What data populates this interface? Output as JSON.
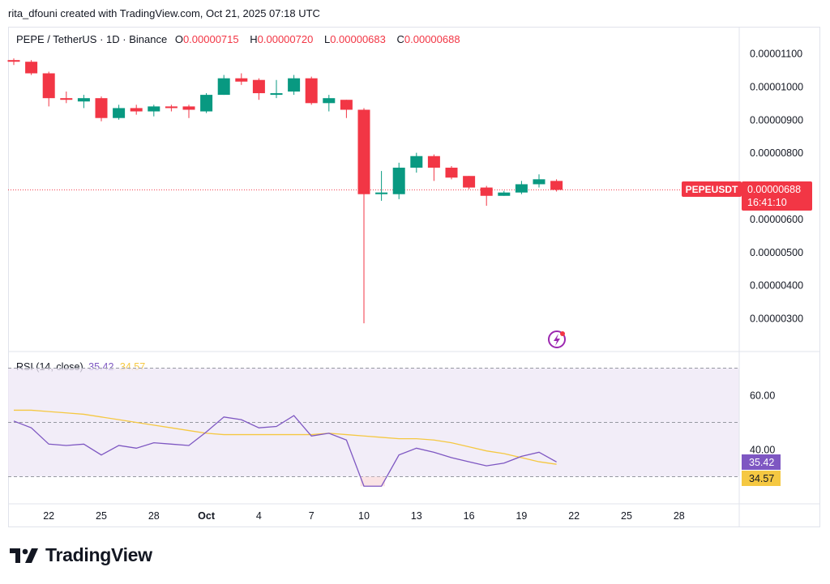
{
  "header": {
    "text": "rita_dfouni created with TradingView.com, Oct 21, 2025 07:18 UTC"
  },
  "legend": {
    "symbol": "PEPE / TetherUS · 1D · Binance",
    "o_label": "O",
    "o_value": "0.00000715",
    "h_label": "H",
    "h_value": "0.00000720",
    "l_label": "L",
    "l_value": "0.00000683",
    "c_label": "C",
    "c_value": "0.00000688"
  },
  "price_tag": {
    "symbol": "PEPEUSDT",
    "price": "0.00000688",
    "countdown": "16:41:10"
  },
  "rsi_legend": {
    "title": "RSI (14, close)",
    "rsi_value": "35.42",
    "ma_value": "34.57"
  },
  "rsi_tags": {
    "rsi": "35.42",
    "ma": "34.57"
  },
  "colors": {
    "up": "#089981",
    "down": "#f23645",
    "rsi": "#7e57c2",
    "rsi_ma": "#f5c842",
    "band": "#ede7f6"
  },
  "footer": {
    "brand": "TradingView"
  },
  "chart_data": [
    {
      "type": "candlestick",
      "title": "PEPE / TetherUS · 1D · Binance",
      "ylim": [
        2.6e-06,
        1.15e-05
      ],
      "y_ticks": [
        "0.00001100",
        "0.00001000",
        "0.00000900",
        "0.00000800",
        "0.00000600",
        "0.00000500",
        "0.00000400",
        "0.00000300"
      ],
      "x_ticks": [
        "22",
        "25",
        "28",
        "Oct",
        "4",
        "7",
        "10",
        "13",
        "16",
        "19",
        "22",
        "25",
        "28"
      ],
      "candles": [
        {
          "o": 1.08e-05,
          "h": 1.085e-05,
          "l": 1.065e-05,
          "c": 1.075e-05
        },
        {
          "o": 1.075e-05,
          "h": 1.08e-05,
          "l": 1.035e-05,
          "c": 1.04e-05
        },
        {
          "o": 1.04e-05,
          "h": 1.045e-05,
          "l": 9.4e-06,
          "c": 9.65e-06
        },
        {
          "o": 9.65e-06,
          "h": 9.85e-06,
          "l": 9.5e-06,
          "c": 9.6e-06
        },
        {
          "o": 9.55e-06,
          "h": 9.75e-06,
          "l": 9.35e-06,
          "c": 9.65e-06
        },
        {
          "o": 9.65e-06,
          "h": 9.7e-06,
          "l": 8.95e-06,
          "c": 9.05e-06
        },
        {
          "o": 9.05e-06,
          "h": 9.45e-06,
          "l": 9e-06,
          "c": 9.35e-06
        },
        {
          "o": 9.35e-06,
          "h": 9.45e-06,
          "l": 9.15e-06,
          "c": 9.25e-06
        },
        {
          "o": 9.25e-06,
          "h": 9.45e-06,
          "l": 9.1e-06,
          "c": 9.4e-06
        },
        {
          "o": 9.4e-06,
          "h": 9.45e-06,
          "l": 9.25e-06,
          "c": 9.35e-06
        },
        {
          "o": 9.4e-06,
          "h": 9.45e-06,
          "l": 9.05e-06,
          "c": 9.3e-06
        },
        {
          "o": 9.25e-06,
          "h": 9.8e-06,
          "l": 9.2e-06,
          "c": 9.75e-06
        },
        {
          "o": 9.75e-06,
          "h": 1.035e-05,
          "l": 9.75e-06,
          "c": 1.025e-05
        },
        {
          "o": 1.025e-05,
          "h": 1.04e-05,
          "l": 1.005e-05,
          "c": 1.015e-05
        },
        {
          "o": 1.02e-05,
          "h": 1.025e-05,
          "l": 9.6e-06,
          "c": 9.8e-06
        },
        {
          "o": 9.75e-06,
          "h": 1.02e-05,
          "l": 9.65e-06,
          "c": 9.8e-06
        },
        {
          "o": 9.85e-06,
          "h": 1.035e-05,
          "l": 9.75e-06,
          "c": 1.025e-05
        },
        {
          "o": 1.025e-05,
          "h": 1.03e-05,
          "l": 9.45e-06,
          "c": 9.5e-06
        },
        {
          "o": 9.5e-06,
          "h": 9.75e-06,
          "l": 9.25e-06,
          "c": 9.65e-06
        },
        {
          "o": 9.6e-06,
          "h": 9.6e-06,
          "l": 9.05e-06,
          "c": 9.3e-06
        },
        {
          "o": 9.3e-06,
          "h": 9.35e-06,
          "l": 2.85e-06,
          "c": 6.75e-06
        },
        {
          "o": 6.75e-06,
          "h": 7.45e-06,
          "l": 6.55e-06,
          "c": 6.8e-06
        },
        {
          "o": 6.75e-06,
          "h": 7.7e-06,
          "l": 6.6e-06,
          "c": 7.55e-06
        },
        {
          "o": 7.55e-06,
          "h": 8e-06,
          "l": 7.4e-06,
          "c": 7.9e-06
        },
        {
          "o": 7.9e-06,
          "h": 7.95e-06,
          "l": 7.15e-06,
          "c": 7.55e-06
        },
        {
          "o": 7.55e-06,
          "h": 7.6e-06,
          "l": 7.2e-06,
          "c": 7.25e-06
        },
        {
          "o": 7.3e-06,
          "h": 7.3e-06,
          "l": 6.9e-06,
          "c": 6.95e-06
        },
        {
          "o": 6.95e-06,
          "h": 7e-06,
          "l": 6.4e-06,
          "c": 6.7e-06
        },
        {
          "o": 6.7e-06,
          "h": 6.85e-06,
          "l": 6.7e-06,
          "c": 6.8e-06
        },
        {
          "o": 6.8e-06,
          "h": 7.15e-06,
          "l": 6.75e-06,
          "c": 7.05e-06
        },
        {
          "o": 7.05e-06,
          "h": 7.35e-06,
          "l": 6.95e-06,
          "c": 7.2e-06
        },
        {
          "o": 7.15e-06,
          "h": 7.2e-06,
          "l": 6.83e-06,
          "c": 6.88e-06
        }
      ],
      "last_price": 6.88e-06
    },
    {
      "type": "line",
      "title": "RSI (14, close)",
      "ylim": [
        22,
        74
      ],
      "y_ticks": [
        "60.00",
        "40.00"
      ],
      "bands": [
        70,
        50,
        30
      ],
      "series": [
        {
          "name": "RSI",
          "values": [
            50.5,
            48,
            42,
            41.5,
            42,
            38,
            41.5,
            40.5,
            42.5,
            42,
            41.5,
            46.5,
            52,
            51,
            48,
            48.5,
            52.5,
            45,
            46,
            43.5,
            26.5,
            26.5,
            38,
            40.5,
            39,
            37,
            35.5,
            34,
            35,
            37.5,
            39,
            35.42
          ]
        },
        {
          "name": "RSI-based MA",
          "values": [
            54.5,
            54.5,
            54,
            53.5,
            53,
            52,
            51,
            50,
            49,
            48,
            47,
            46,
            45.5,
            45.5,
            45.5,
            45.5,
            45.5,
            45.5,
            46,
            45.5,
            45,
            44.5,
            44,
            44,
            43.5,
            42.5,
            41,
            39.5,
            38.5,
            37,
            35.5,
            34.57
          ]
        }
      ]
    }
  ]
}
